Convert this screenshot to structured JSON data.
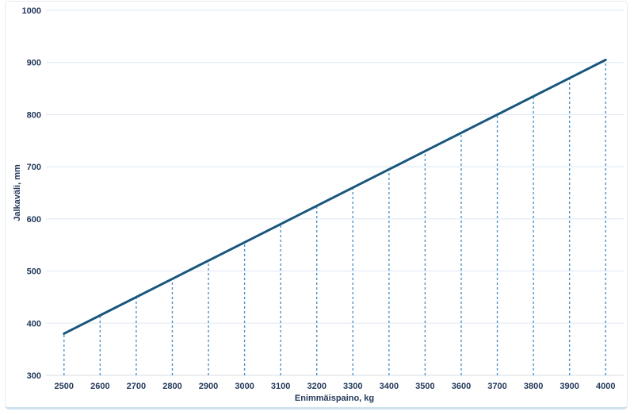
{
  "chart_data": {
    "type": "line",
    "title": "",
    "xlabel": "Enimmäispaino, kg",
    "ylabel": "Jalkaväli, mm",
    "x": [
      2500,
      2600,
      2700,
      2800,
      2900,
      3000,
      3100,
      3200,
      3300,
      3400,
      3500,
      3600,
      3700,
      3800,
      3900,
      4000
    ],
    "series": [
      {
        "name": "Jalkaväli",
        "values": [
          380,
          415,
          450,
          485,
          520,
          555,
          590,
          625,
          660,
          695,
          730,
          765,
          800,
          835,
          870,
          905
        ]
      }
    ],
    "x_tick_labels": [
      "2500",
      "2600",
      "2700",
      "2800",
      "2900",
      "3000",
      "3100",
      "3200",
      "3300",
      "3400",
      "3500",
      "3600",
      "3700",
      "3800",
      "3900",
      "4000"
    ],
    "y_ticks": [
      300,
      400,
      500,
      600,
      700,
      800,
      900,
      1000
    ],
    "y_tick_labels": [
      "300",
      "400",
      "500",
      "600",
      "700",
      "800",
      "900",
      "1000"
    ],
    "xlim": [
      2450,
      4050
    ],
    "ylim": [
      300,
      1000
    ],
    "grid": "horizontal",
    "legend": "none",
    "drop_lines": "dashed vertical from x-axis up to line at every x tick",
    "colors": {
      "line": "#17567d",
      "drop_line": "#4e93c8",
      "gridline": "#dee8f2",
      "axis_line": "#d8dee6",
      "text": "#24395b",
      "card_border": "#e4ecf3",
      "bottom_accent": "#cfe2f0"
    }
  }
}
